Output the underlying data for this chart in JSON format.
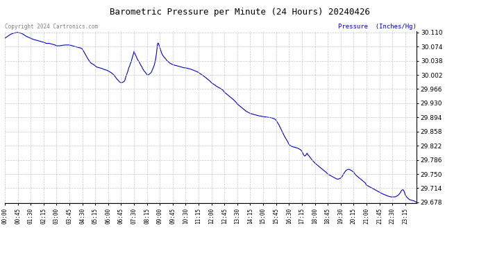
{
  "title": "Barometric Pressure per Minute (24 Hours) 20240426",
  "ylabel": "Pressure  (Inches/Hg)",
  "copyright_text": "Copyright 2024 Cartronics.com",
  "line_color": "#0000cc",
  "background_color": "#ffffff",
  "grid_color": "#c8c8c8",
  "title_color": "#000000",
  "ylabel_color": "#0000cc",
  "copyright_color": "#808080",
  "ylim": [
    29.678,
    30.11
  ],
  "yticks": [
    29.678,
    29.714,
    29.75,
    29.786,
    29.822,
    29.858,
    29.894,
    29.93,
    29.966,
    30.002,
    30.038,
    30.074,
    30.11
  ],
  "xtick_labels": [
    "00:00",
    "00:45",
    "01:30",
    "02:15",
    "03:00",
    "03:45",
    "04:30",
    "05:15",
    "06:00",
    "06:45",
    "07:30",
    "08:15",
    "09:00",
    "09:45",
    "10:30",
    "11:15",
    "12:00",
    "12:45",
    "13:30",
    "14:15",
    "15:00",
    "15:45",
    "16:30",
    "17:15",
    "18:00",
    "18:45",
    "19:30",
    "20:15",
    "21:00",
    "21:45",
    "22:30",
    "23:15"
  ],
  "key_times": [
    0,
    45,
    90,
    135,
    180,
    225,
    270,
    315,
    360,
    405,
    450,
    495,
    540,
    585,
    630,
    675,
    720,
    765,
    810,
    855,
    900,
    945,
    990,
    1035,
    1080,
    1125,
    1170,
    1215,
    1260,
    1305,
    1350,
    1395
  ],
  "smooth_data": [
    [
      0,
      30.095
    ],
    [
      10,
      30.1
    ],
    [
      20,
      30.105
    ],
    [
      30,
      30.108
    ],
    [
      45,
      30.11
    ],
    [
      60,
      30.107
    ],
    [
      75,
      30.1
    ],
    [
      90,
      30.095
    ],
    [
      100,
      30.092
    ],
    [
      110,
      30.09
    ],
    [
      120,
      30.088
    ],
    [
      130,
      30.086
    ],
    [
      135,
      30.085
    ],
    [
      145,
      30.082
    ],
    [
      155,
      30.082
    ],
    [
      165,
      30.08
    ],
    [
      175,
      30.078
    ],
    [
      180,
      30.076
    ],
    [
      190,
      30.076
    ],
    [
      200,
      30.077
    ],
    [
      210,
      30.078
    ],
    [
      225,
      30.078
    ],
    [
      235,
      30.076
    ],
    [
      245,
      30.074
    ],
    [
      255,
      30.072
    ],
    [
      265,
      30.07
    ],
    [
      270,
      30.068
    ],
    [
      280,
      30.055
    ],
    [
      290,
      30.042
    ],
    [
      300,
      30.032
    ],
    [
      310,
      30.028
    ],
    [
      315,
      30.025
    ],
    [
      320,
      30.022
    ],
    [
      330,
      30.02
    ],
    [
      340,
      30.018
    ],
    [
      345,
      30.016
    ],
    [
      355,
      30.014
    ],
    [
      360,
      30.012
    ],
    [
      370,
      30.008
    ],
    [
      380,
      30.002
    ],
    [
      390,
      29.992
    ],
    [
      400,
      29.984
    ],
    [
      405,
      29.982
    ],
    [
      410,
      29.983
    ],
    [
      415,
      29.985
    ],
    [
      418,
      29.988
    ],
    [
      420,
      29.993
    ],
    [
      422,
      29.998
    ],
    [
      424,
      30.002
    ],
    [
      426,
      30.006
    ],
    [
      428,
      30.01
    ],
    [
      430,
      30.015
    ],
    [
      432,
      30.02
    ],
    [
      435,
      30.025
    ],
    [
      437,
      30.03
    ],
    [
      440,
      30.035
    ],
    [
      442,
      30.04
    ],
    [
      445,
      30.047
    ],
    [
      447,
      30.053
    ],
    [
      449,
      30.058
    ],
    [
      450,
      30.062
    ],
    [
      452,
      30.058
    ],
    [
      455,
      30.053
    ],
    [
      458,
      30.048
    ],
    [
      460,
      30.045
    ],
    [
      462,
      30.042
    ],
    [
      465,
      30.038
    ],
    [
      468,
      30.035
    ],
    [
      470,
      30.032
    ],
    [
      473,
      30.028
    ],
    [
      475,
      30.025
    ],
    [
      478,
      30.022
    ],
    [
      480,
      30.018
    ],
    [
      483,
      30.015
    ],
    [
      485,
      30.012
    ],
    [
      488,
      30.01
    ],
    [
      490,
      30.008
    ],
    [
      493,
      30.005
    ],
    [
      495,
      30.003
    ],
    [
      498,
      30.002
    ],
    [
      500,
      30.002
    ],
    [
      510,
      30.008
    ],
    [
      520,
      30.025
    ],
    [
      525,
      30.04
    ],
    [
      527,
      30.05
    ],
    [
      529,
      30.06
    ],
    [
      530,
      30.068
    ],
    [
      531,
      30.075
    ],
    [
      532,
      30.08
    ],
    [
      533,
      30.082
    ],
    [
      534,
      30.083
    ],
    [
      535,
      30.082
    ],
    [
      537,
      30.078
    ],
    [
      540,
      30.072
    ],
    [
      543,
      30.065
    ],
    [
      546,
      30.058
    ],
    [
      550,
      30.052
    ],
    [
      555,
      30.047
    ],
    [
      560,
      30.043
    ],
    [
      565,
      30.038
    ],
    [
      570,
      30.035
    ],
    [
      575,
      30.032
    ],
    [
      580,
      30.03
    ],
    [
      585,
      30.028
    ],
    [
      595,
      30.026
    ],
    [
      605,
      30.024
    ],
    [
      615,
      30.022
    ],
    [
      625,
      30.02
    ],
    [
      630,
      30.02
    ],
    [
      640,
      30.018
    ],
    [
      650,
      30.016
    ],
    [
      660,
      30.013
    ],
    [
      670,
      30.01
    ],
    [
      675,
      30.008
    ],
    [
      685,
      30.003
    ],
    [
      695,
      29.998
    ],
    [
      705,
      29.992
    ],
    [
      715,
      29.986
    ],
    [
      720,
      29.982
    ],
    [
      730,
      29.977
    ],
    [
      740,
      29.972
    ],
    [
      750,
      29.968
    ],
    [
      760,
      29.963
    ],
    [
      765,
      29.958
    ],
    [
      775,
      29.952
    ],
    [
      785,
      29.946
    ],
    [
      795,
      29.94
    ],
    [
      805,
      29.933
    ],
    [
      810,
      29.928
    ],
    [
      820,
      29.922
    ],
    [
      830,
      29.916
    ],
    [
      840,
      29.91
    ],
    [
      850,
      29.906
    ],
    [
      855,
      29.904
    ],
    [
      865,
      29.902
    ],
    [
      875,
      29.9
    ],
    [
      885,
      29.898
    ],
    [
      895,
      29.897
    ],
    [
      900,
      29.896
    ],
    [
      910,
      29.895
    ],
    [
      920,
      29.894
    ],
    [
      930,
      29.893
    ],
    [
      940,
      29.89
    ],
    [
      945,
      29.887
    ],
    [
      955,
      29.875
    ],
    [
      965,
      29.86
    ],
    [
      975,
      29.845
    ],
    [
      985,
      29.833
    ],
    [
      990,
      29.825
    ],
    [
      1000,
      29.82
    ],
    [
      1010,
      29.818
    ],
    [
      1020,
      29.816
    ],
    [
      1030,
      29.812
    ],
    [
      1035,
      29.808
    ],
    [
      1038,
      29.803
    ],
    [
      1040,
      29.8
    ],
    [
      1042,
      29.798
    ],
    [
      1043,
      29.797
    ],
    [
      1044,
      29.796
    ],
    [
      1045,
      29.796
    ],
    [
      1048,
      29.797
    ],
    [
      1050,
      29.8
    ],
    [
      1052,
      29.802
    ],
    [
      1053,
      29.803
    ],
    [
      1054,
      29.802
    ],
    [
      1055,
      29.8
    ],
    [
      1057,
      29.798
    ],
    [
      1060,
      29.796
    ],
    [
      1063,
      29.793
    ],
    [
      1065,
      29.791
    ],
    [
      1068,
      29.788
    ],
    [
      1070,
      29.786
    ],
    [
      1073,
      29.784
    ],
    [
      1075,
      29.782
    ],
    [
      1078,
      29.78
    ],
    [
      1080,
      29.778
    ],
    [
      1090,
      29.772
    ],
    [
      1100,
      29.766
    ],
    [
      1110,
      29.76
    ],
    [
      1120,
      29.754
    ],
    [
      1125,
      29.75
    ],
    [
      1135,
      29.746
    ],
    [
      1140,
      29.744
    ],
    [
      1145,
      29.742
    ],
    [
      1150,
      29.74
    ],
    [
      1155,
      29.738
    ],
    [
      1160,
      29.737
    ],
    [
      1165,
      29.738
    ],
    [
      1170,
      29.74
    ],
    [
      1175,
      29.744
    ],
    [
      1180,
      29.75
    ],
    [
      1185,
      29.756
    ],
    [
      1190,
      29.76
    ],
    [
      1195,
      29.762
    ],
    [
      1200,
      29.762
    ],
    [
      1205,
      29.76
    ],
    [
      1210,
      29.758
    ],
    [
      1215,
      29.755
    ],
    [
      1218,
      29.752
    ],
    [
      1220,
      29.75
    ],
    [
      1222,
      29.748
    ],
    [
      1225,
      29.746
    ],
    [
      1230,
      29.743
    ],
    [
      1235,
      29.74
    ],
    [
      1240,
      29.737
    ],
    [
      1245,
      29.734
    ],
    [
      1255,
      29.728
    ],
    [
      1260,
      29.722
    ],
    [
      1270,
      29.718
    ],
    [
      1280,
      29.714
    ],
    [
      1290,
      29.71
    ],
    [
      1300,
      29.706
    ],
    [
      1305,
      29.704
    ],
    [
      1315,
      29.7
    ],
    [
      1325,
      29.697
    ],
    [
      1335,
      29.694
    ],
    [
      1345,
      29.692
    ],
    [
      1350,
      29.692
    ],
    [
      1360,
      29.692
    ],
    [
      1365,
      29.694
    ],
    [
      1370,
      29.696
    ],
    [
      1375,
      29.7
    ],
    [
      1378,
      29.703
    ],
    [
      1380,
      29.706
    ],
    [
      1382,
      29.708
    ],
    [
      1385,
      29.71
    ],
    [
      1388,
      29.71
    ],
    [
      1390,
      29.708
    ],
    [
      1393,
      29.702
    ],
    [
      1395,
      29.697
    ],
    [
      1400,
      29.692
    ],
    [
      1405,
      29.688
    ],
    [
      1410,
      29.685
    ],
    [
      1415,
      29.684
    ],
    [
      1420,
      29.683
    ],
    [
      1425,
      29.682
    ],
    [
      1430,
      29.68
    ],
    [
      1435,
      29.678
    ]
  ]
}
